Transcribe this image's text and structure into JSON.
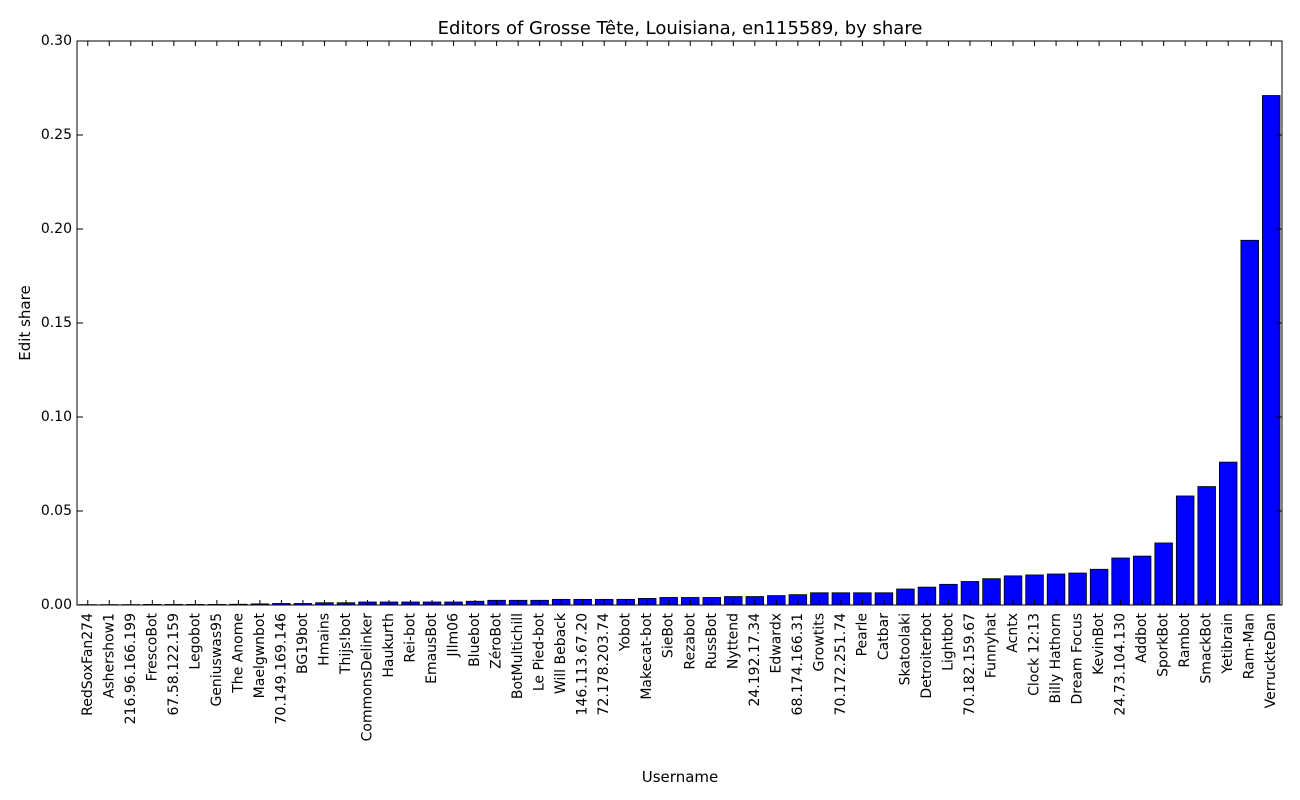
{
  "chart_data": {
    "type": "bar",
    "title": "Editors of Grosse Tête, Louisiana, en115589, by share",
    "xlabel": "Username",
    "ylabel": "Edit share",
    "ylim": [
      0,
      0.3
    ],
    "yticks": [
      "0.00",
      "0.05",
      "0.10",
      "0.15",
      "0.20",
      "0.25",
      "0.30"
    ],
    "grid": false,
    "bar_color": "#0000ff",
    "categories": [
      "RedSoxFan274",
      "Ashershow1",
      "216.96.166.199",
      "FrescoBot",
      "67.58.122.159",
      "Legobot",
      "Geniuswas95",
      "The Anome",
      "Maelgwnbot",
      "70.149.169.146",
      "BG19bot",
      "Hmains",
      "Thijs!bot",
      "CommonsDelinker",
      "Haukurth",
      "Rei-bot",
      "EmausBot",
      "JIlm06",
      "Bluebot",
      "ZéroBot",
      "BotMultichill",
      "Le Pied-bot",
      "Will Beback",
      "146.113.67.20",
      "72.178.203.74",
      "Yobot",
      "Makecat-bot",
      "SieBot",
      "Rezabot",
      "RussBot",
      "Nyttend",
      "24.192.17.34",
      "Edwardx",
      "68.174.166.31",
      "Growtits",
      "70.172.251.74",
      "Pearle",
      "Catbar",
      "Skatoolaki",
      "Detroiterbot",
      "Lightbot",
      "70.182.159.67",
      "Funnyhat",
      "Acntx",
      "Clock 12:13",
      "Billy Hathorn",
      "Dream Focus",
      "KevinBot",
      "24.73.104.130",
      "Addbot",
      "SporkBot",
      "Rambot",
      "SmackBot",
      "Yetibrain",
      "Ram-Man",
      "VerruckteDan"
    ],
    "values": [
      0.0002,
      0.0002,
      0.0002,
      0.0003,
      0.0003,
      0.0003,
      0.0003,
      0.0004,
      0.0006,
      0.0008,
      0.0008,
      0.0012,
      0.0012,
      0.0016,
      0.0016,
      0.0016,
      0.0016,
      0.0016,
      0.002,
      0.0025,
      0.0025,
      0.0025,
      0.003,
      0.003,
      0.003,
      0.003,
      0.0035,
      0.004,
      0.004,
      0.004,
      0.0045,
      0.0045,
      0.005,
      0.0055,
      0.0065,
      0.0065,
      0.0065,
      0.0065,
      0.0085,
      0.0095,
      0.011,
      0.0125,
      0.014,
      0.0155,
      0.016,
      0.0165,
      0.017,
      0.019,
      0.025,
      0.026,
      0.033,
      0.058,
      0.063,
      0.076,
      0.194,
      0.271
    ]
  }
}
